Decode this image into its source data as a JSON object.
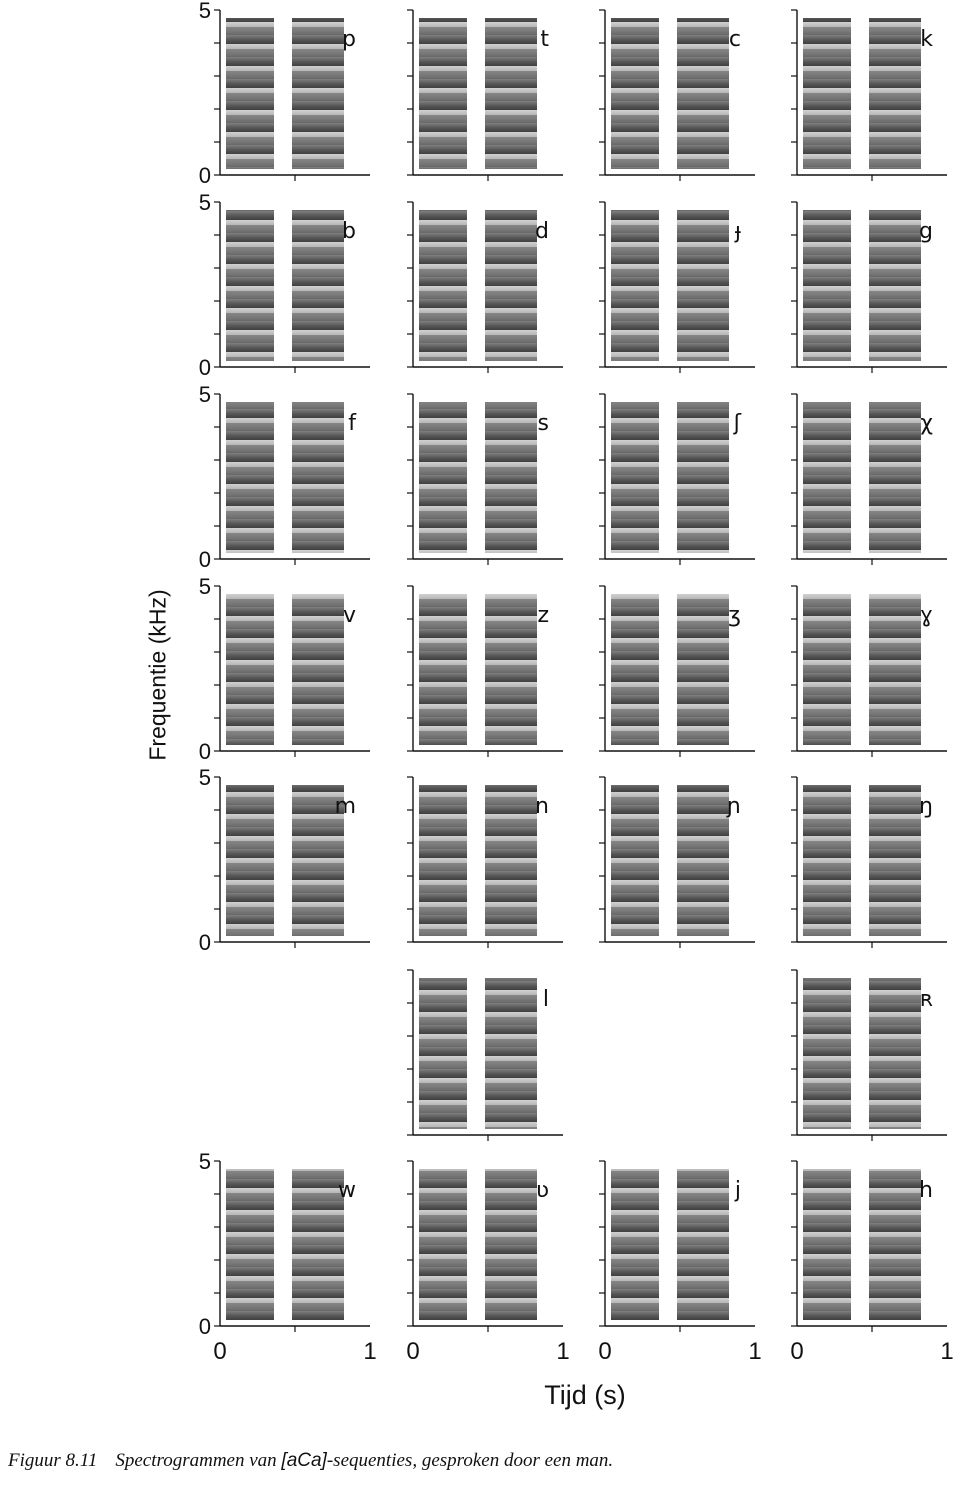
{
  "figure": {
    "y_axis_label": "Frequentie (kHz)",
    "x_axis_label": "Tijd (s)",
    "caption": {
      "number": "Figuur 8.11",
      "text_before": "Spectrogrammen van ",
      "sequence": "[aCa]",
      "text_after": "-sequenties, gesproken door een man."
    }
  },
  "axis_ticks": {
    "y_top": "5",
    "y_bottom": "0",
    "x_left": "0",
    "x_right": "1"
  },
  "rows": [
    {
      "show_y_ticks": true,
      "labels": [
        "p",
        "t",
        "c",
        "k"
      ]
    },
    {
      "show_y_ticks": true,
      "labels": [
        "b",
        "d",
        "ɟ",
        "g"
      ]
    },
    {
      "show_y_ticks": true,
      "labels": [
        "f",
        "s",
        "ʃ",
        "χ"
      ]
    },
    {
      "show_y_ticks": true,
      "labels": [
        "v",
        "z",
        "ʒ",
        "ɣ"
      ]
    },
    {
      "show_y_ticks": true,
      "labels": [
        "m",
        "n",
        "ɲ",
        "ŋ"
      ]
    },
    {
      "show_y_ticks": false,
      "labels": [
        null,
        "l",
        null,
        "ʀ"
      ]
    },
    {
      "show_y_ticks": true,
      "labels": [
        "w",
        "ʋ",
        "j",
        "h"
      ]
    }
  ],
  "colors": {
    "background": "#ffffff",
    "ink": "#111111",
    "spectrogram_dark": "#1e1e1e",
    "spectrogram_light": "#9a9a9a"
  }
}
